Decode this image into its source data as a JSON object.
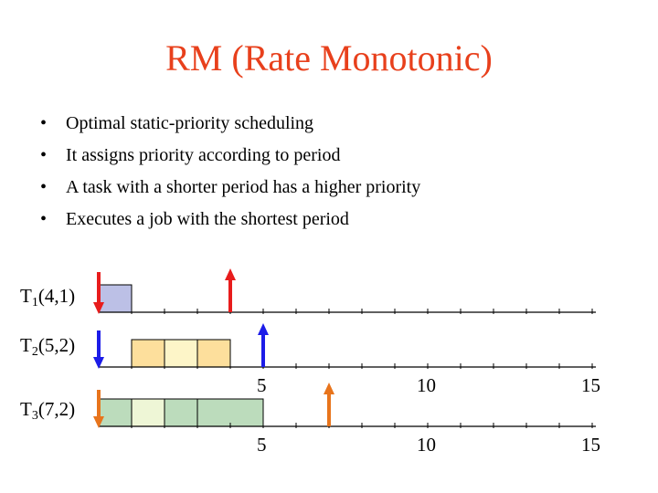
{
  "title": "RM (Rate Monotonic)",
  "bullets": [
    "Optimal static-priority scheduling",
    "It assigns priority according to period",
    "A task with a shorter period has a higher priority",
    "Executes a job with the shortest period"
  ],
  "bullet_symbol": "•",
  "tasks": [
    {
      "name": "T",
      "index": "1",
      "params": "(4,1)",
      "period": 4,
      "wcet": 1,
      "color": "#e81c1c"
    },
    {
      "name": "T",
      "index": "2",
      "params": "(5,2)",
      "period": 5,
      "wcet": 2,
      "color": "#1c1ce8"
    },
    {
      "name": "T",
      "index": "3",
      "params": "(7,2)",
      "period": 7,
      "wcet": 2,
      "color": "#e8741c"
    }
  ],
  "tick_labels_row2": [
    "5",
    "10",
    "15"
  ],
  "tick_labels_row3": [
    "5",
    "10",
    "15"
  ],
  "colors": {
    "title": "#e8401c",
    "t1_exec": "#bcc0e6",
    "t2_exec_light": "#fdf5c8",
    "t2_exec": "#fddf9c",
    "t3_exec": "#bcdcbc",
    "t3_exec_light": "#eef6d6",
    "axis": "#000000"
  }
}
